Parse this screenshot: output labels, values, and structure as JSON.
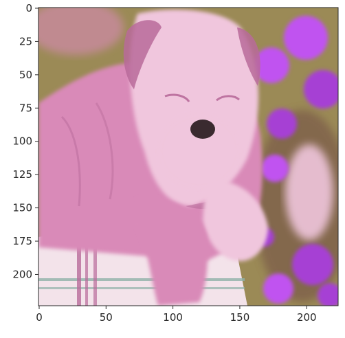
{
  "chart_data": {
    "type": "image",
    "title": "",
    "xlabel": "",
    "ylabel": "",
    "xlim": [
      -0.5,
      223.5
    ],
    "ylim": [
      223.5,
      -0.5
    ],
    "xticks": [
      0,
      50,
      100,
      150,
      200
    ],
    "yticks": [
      0,
      25,
      50,
      75,
      100,
      125,
      150,
      175,
      200
    ],
    "xtick_labels": [
      "0",
      "50",
      "100",
      "150",
      "200"
    ],
    "ytick_labels": [
      "0",
      "25",
      "50",
      "75",
      "100",
      "125",
      "150",
      "175",
      "200"
    ],
    "image_subject": "pink-tinted bulldog puppy on a blanket with purple flowers",
    "colors": {
      "pink": "#d98ab8",
      "pink_light": "#f0c6dd",
      "pink_dark": "#b86a9a",
      "purple": "#a63fd4",
      "purple_bright": "#c052f0",
      "olive": "#9b8a56",
      "brown": "#7a5a4a",
      "nose": "#3a2a2f",
      "blanket": "#f3e3ea",
      "stripe": "#8fb0a8"
    }
  }
}
